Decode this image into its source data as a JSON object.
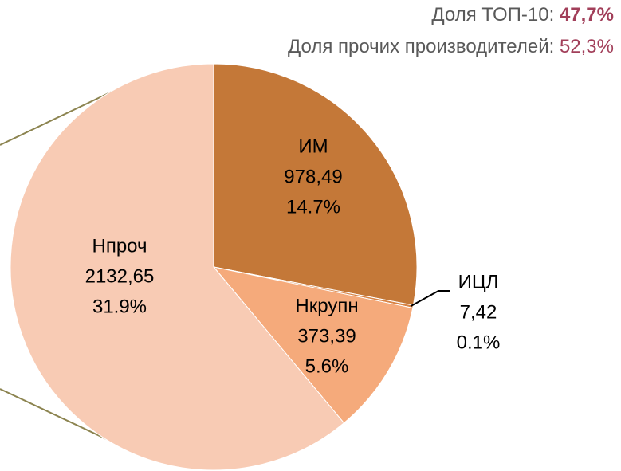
{
  "chart_data": {
    "type": "pie",
    "annotations": [
      {
        "text": "Доля ТОП-10:",
        "value": "47,7%"
      },
      {
        "text": "Доля прочих производителей:",
        "value": "52,3%"
      }
    ],
    "categories": [
      "ИМ",
      "ИЦЛ",
      "Нкрупн",
      "Нпроч"
    ],
    "values": [
      978.49,
      7.42,
      373.39,
      2132.65
    ],
    "value_labels": [
      "978,49",
      "7,42",
      "373,39",
      "2132,65"
    ],
    "shares": [
      14.7,
      0.1,
      5.6,
      31.9
    ],
    "share_labels": [
      "14.7%",
      "0.1%",
      "5.6%",
      "31.9%"
    ],
    "colors": [
      "#c47838",
      "#d98446",
      "#f5aa7b",
      "#f8cbb4"
    ]
  }
}
